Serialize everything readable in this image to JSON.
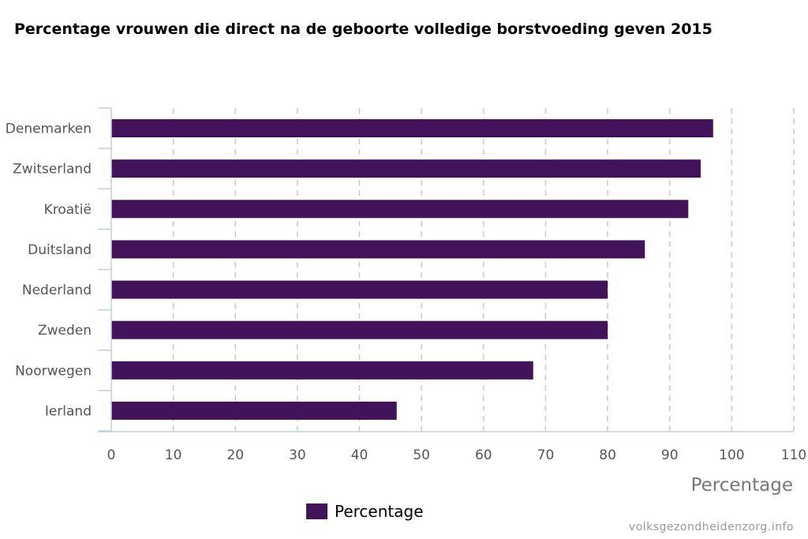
{
  "title": "Percentage vrouwen die direct na de geboorte volledige borstvoeding geven 2015",
  "source": "volksgezondheidenzorg.info",
  "chart_data": {
    "type": "bar",
    "orientation": "horizontal",
    "categories": [
      "Denemarken",
      "Zwitserland",
      "Kroatië",
      "Duitsland",
      "Nederland",
      "Zweden",
      "Noorwegen",
      "Ierland"
    ],
    "series": [
      {
        "name": "Percentage",
        "values": [
          97,
          95,
          93,
          86,
          80,
          80,
          68,
          46
        ],
        "color": "#42135a"
      }
    ],
    "xlabel": "Percentage",
    "ylabel": "",
    "xlim": [
      0,
      110
    ],
    "xticks": [
      0,
      10,
      20,
      30,
      40,
      50,
      60,
      70,
      80,
      90,
      100,
      110
    ],
    "grid": "vertical dashed",
    "legend": "bottom"
  }
}
